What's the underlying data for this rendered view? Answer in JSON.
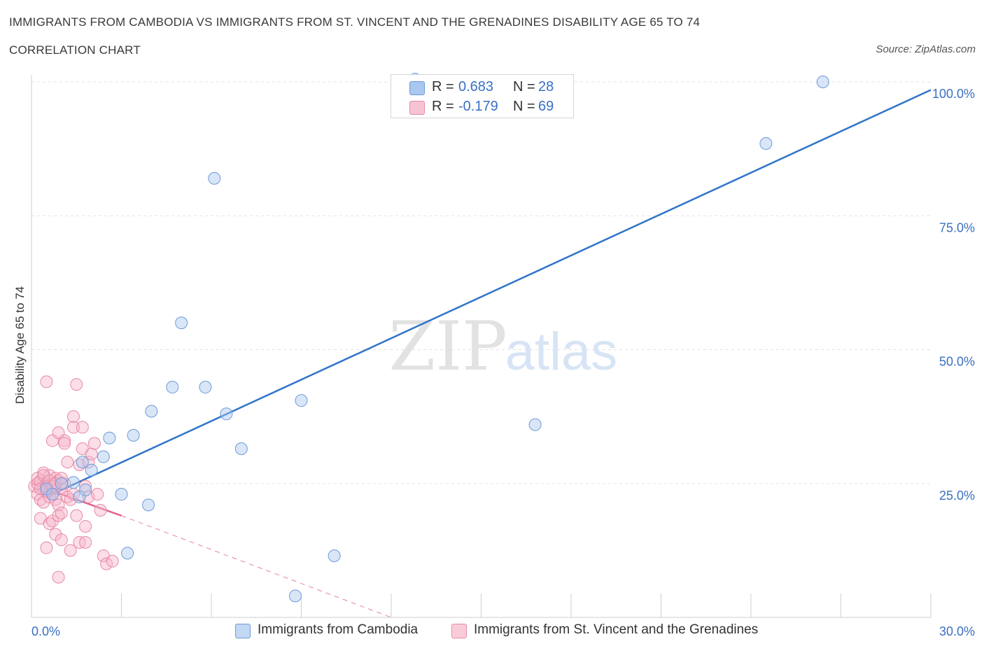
{
  "title": "IMMIGRANTS FROM CAMBODIA VS IMMIGRANTS FROM ST. VINCENT AND THE GRENADINES DISABILITY AGE 65 TO 74",
  "subtitle": "CORRELATION CHART",
  "source": "Source: ZipAtlas.com",
  "watermark": {
    "zip": "ZIP",
    "atlas": "atlas"
  },
  "legend": {
    "r_label": "R =",
    "n_label": "N =",
    "rows": [
      {
        "r": "0.683",
        "n": "28"
      },
      {
        "r": "-0.179",
        "n": "69"
      }
    ]
  },
  "bottom_legend": [
    "Immigrants from Cambodia",
    "Immigrants from St. Vincent and the Grenadines"
  ],
  "colors": {
    "blue_fill": "#a9c7ef",
    "blue_stroke": "#6f9ad8",
    "blue_line": "#2f74c9",
    "pink_fill": "#f6b6c9",
    "pink_stroke": "#e68aa6",
    "pink_line": "#e0628a",
    "axis_text": "#3a6fc4",
    "grid": "#e3e3e3"
  },
  "chart_data": {
    "type": "scatter",
    "title": "IMMIGRANTS FROM CAMBODIA VS IMMIGRANTS FROM ST. VINCENT AND THE GRENADINES DISABILITY AGE 65 TO 74",
    "xlabel": "",
    "ylabel": "Disability Age 65 to 74",
    "xlim": [
      0,
      30
    ],
    "ylim": [
      0,
      100
    ],
    "x_tick_labels": [
      "0.0%",
      "30.0%"
    ],
    "y_ticks": [
      25,
      50,
      75,
      100
    ],
    "y_tick_labels": [
      "25.0%",
      "50.0%",
      "75.0%",
      "100.0%"
    ],
    "grid": true,
    "legend_position": "top-center",
    "series": [
      {
        "name": "Immigrants from Cambodia",
        "color": "#a9c7ef",
        "points": [
          [
            1.0,
            25.0
          ],
          [
            1.4,
            25.2
          ],
          [
            1.7,
            29.0
          ],
          [
            1.6,
            22.5
          ],
          [
            1.8,
            23.8
          ],
          [
            2.0,
            27.5
          ],
          [
            2.4,
            30.0
          ],
          [
            2.6,
            33.5
          ],
          [
            3.0,
            23.0
          ],
          [
            3.2,
            12.0
          ],
          [
            3.4,
            34.0
          ],
          [
            3.9,
            21.0
          ],
          [
            4.0,
            38.5
          ],
          [
            4.7,
            43.0
          ],
          [
            5.0,
            55.0
          ],
          [
            5.8,
            43.0
          ],
          [
            6.1,
            82.0
          ],
          [
            6.5,
            38.0
          ],
          [
            7.0,
            31.5
          ],
          [
            9.0,
            40.5
          ],
          [
            10.1,
            11.5
          ],
          [
            12.8,
            100.5
          ],
          [
            16.8,
            36.0
          ],
          [
            24.5,
            88.5
          ],
          [
            26.4,
            100.0
          ],
          [
            8.8,
            4.0
          ],
          [
            0.5,
            24.0
          ],
          [
            0.7,
            23.0
          ]
        ]
      },
      {
        "name": "Immigrants from St. Vincent and the Grenadines",
        "color": "#f6b6c9",
        "points": [
          [
            0.1,
            24.5
          ],
          [
            0.2,
            26.0
          ],
          [
            0.2,
            23.0
          ],
          [
            0.3,
            25.5
          ],
          [
            0.3,
            22.0
          ],
          [
            0.3,
            18.5
          ],
          [
            0.4,
            27.0
          ],
          [
            0.4,
            24.0
          ],
          [
            0.4,
            21.5
          ],
          [
            0.5,
            25.0
          ],
          [
            0.5,
            23.5
          ],
          [
            0.5,
            13.0
          ],
          [
            0.5,
            44.0
          ],
          [
            0.6,
            26.5
          ],
          [
            0.6,
            24.5
          ],
          [
            0.6,
            22.5
          ],
          [
            0.6,
            17.5
          ],
          [
            0.7,
            25.0
          ],
          [
            0.7,
            23.0
          ],
          [
            0.7,
            18.0
          ],
          [
            0.7,
            33.0
          ],
          [
            0.8,
            26.0
          ],
          [
            0.8,
            24.0
          ],
          [
            0.8,
            22.0
          ],
          [
            0.8,
            15.5
          ],
          [
            0.9,
            25.5
          ],
          [
            0.9,
            21.0
          ],
          [
            0.9,
            19.0
          ],
          [
            0.9,
            7.5
          ],
          [
            0.9,
            34.5
          ],
          [
            1.0,
            24.0
          ],
          [
            1.0,
            14.5
          ],
          [
            1.0,
            19.5
          ],
          [
            1.1,
            25.0
          ],
          [
            1.1,
            33.0
          ],
          [
            1.1,
            32.5
          ],
          [
            1.2,
            22.5
          ],
          [
            1.2,
            29.0
          ],
          [
            1.3,
            22.0
          ],
          [
            1.3,
            12.5
          ],
          [
            1.4,
            37.5
          ],
          [
            1.4,
            35.5
          ],
          [
            1.4,
            23.0
          ],
          [
            1.5,
            19.0
          ],
          [
            1.5,
            43.5
          ],
          [
            1.6,
            28.5
          ],
          [
            1.6,
            14.0
          ],
          [
            1.7,
            35.5
          ],
          [
            1.7,
            31.5
          ],
          [
            1.8,
            17.0
          ],
          [
            1.8,
            14.0
          ],
          [
            1.8,
            24.5
          ],
          [
            1.9,
            29.0
          ],
          [
            1.9,
            22.5
          ],
          [
            2.0,
            30.5
          ],
          [
            2.1,
            32.5
          ],
          [
            2.2,
            23.0
          ],
          [
            2.3,
            20.0
          ],
          [
            2.4,
            11.5
          ],
          [
            2.5,
            10.0
          ],
          [
            2.7,
            10.5
          ],
          [
            0.2,
            25.0
          ],
          [
            0.3,
            24.0
          ],
          [
            0.4,
            26.5
          ],
          [
            0.5,
            24.5
          ],
          [
            0.6,
            25.5
          ],
          [
            0.7,
            24.5
          ],
          [
            0.8,
            25.0
          ],
          [
            1.0,
            26.0
          ]
        ]
      }
    ],
    "trendlines": [
      {
        "series": "Immigrants from Cambodia",
        "x": [
          0.5,
          30
        ],
        "y": [
          22.5,
          98.5
        ],
        "style": "solid"
      },
      {
        "series": "Immigrants from St. Vincent and the Grenadines",
        "x": [
          0,
          3
        ],
        "y": [
          25.0,
          19.0
        ],
        "style": "solid"
      },
      {
        "series": "Immigrants from St. Vincent and the Grenadines",
        "x": [
          3,
          12
        ],
        "y": [
          19.0,
          0
        ],
        "style": "dashed"
      }
    ]
  }
}
